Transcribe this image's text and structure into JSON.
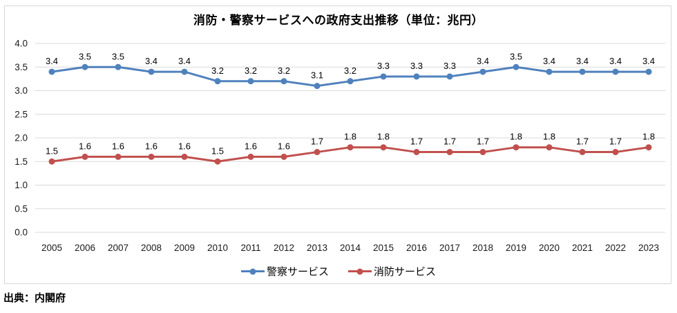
{
  "title": "消防・警察サービスへの政府支出推移（単位：兆円）",
  "source": "出典：内閣府",
  "chart_data": {
    "type": "line",
    "title": "消防・警察サービスへの政府支出推移（単位：兆円）",
    "categories": [
      "2005",
      "2006",
      "2007",
      "2008",
      "2009",
      "2010",
      "2011",
      "2012",
      "2013",
      "2014",
      "2015",
      "2016",
      "2017",
      "2018",
      "2019",
      "2020",
      "2021",
      "2022",
      "2023"
    ],
    "series": [
      {
        "id": "police",
        "name": "警察サービス",
        "color": "#4F81BD",
        "values": [
          3.4,
          3.5,
          3.5,
          3.4,
          3.4,
          3.2,
          3.2,
          3.2,
          3.1,
          3.2,
          3.3,
          3.3,
          3.3,
          3.4,
          3.5,
          3.4,
          3.4,
          3.4,
          3.4
        ]
      },
      {
        "id": "fire",
        "name": "消防サービス",
        "color": "#C0504D",
        "values": [
          1.5,
          1.6,
          1.6,
          1.6,
          1.6,
          1.5,
          1.6,
          1.6,
          1.7,
          1.8,
          1.8,
          1.7,
          1.7,
          1.7,
          1.8,
          1.8,
          1.7,
          1.7,
          1.8
        ]
      }
    ],
    "xlabel": "",
    "ylabel": "",
    "ylim": [
      0.0,
      4.0
    ],
    "ytick_step": 0.5,
    "ytick_labels": [
      "0.0",
      "0.5",
      "1.0",
      "1.5",
      "2.0",
      "2.5",
      "3.0",
      "3.5",
      "4.0"
    ],
    "grid": true,
    "gridline_color": "#D9D9D9",
    "tick_label_color": "#1a1a1a",
    "data_label_color": "#000000",
    "legend_position": "bottom",
    "data_labels_shown": true
  }
}
